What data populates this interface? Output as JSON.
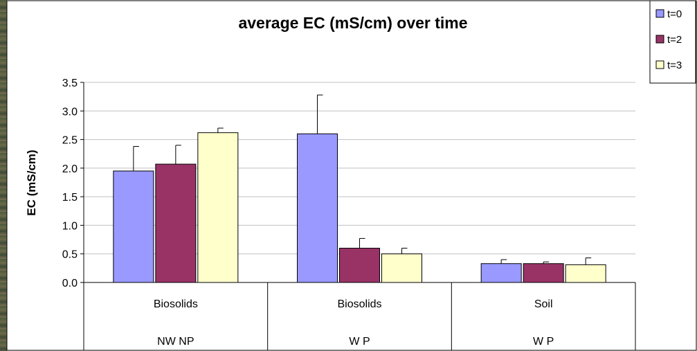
{
  "colors": {
    "t0": "#9999ff",
    "t2": "#993366",
    "t3": "#ffffcc",
    "axis": "#000000",
    "grid": "#c0c0c0"
  },
  "chart_data": {
    "type": "bar",
    "title": "average EC (mS/cm) over time",
    "ylabel": "EC (mS/cm)",
    "xlabel": "",
    "ylim": [
      0,
      3.5
    ],
    "yticks": [
      "0.0",
      "0.5",
      "1.0",
      "1.5",
      "2.0",
      "2.5",
      "3.0",
      "3.5"
    ],
    "grid": true,
    "legend_position": "top-right",
    "categories": [
      {
        "line1": "Biosolids",
        "line2": "NW NP"
      },
      {
        "line1": "Biosolids",
        "line2": "W P"
      },
      {
        "line1": "Soil",
        "line2": "W P"
      }
    ],
    "series": [
      {
        "name": "t=0",
        "color_key": "t0",
        "values": [
          1.95,
          2.6,
          0.33
        ],
        "errors": [
          0.43,
          0.68,
          0.07
        ]
      },
      {
        "name": "t=2",
        "color_key": "t2",
        "values": [
          2.07,
          0.6,
          0.33
        ],
        "errors": [
          0.33,
          0.17,
          0.03
        ]
      },
      {
        "name": "t=3",
        "color_key": "t3",
        "values": [
          2.62,
          0.5,
          0.31
        ],
        "errors": [
          0.08,
          0.1,
          0.12
        ]
      }
    ]
  }
}
